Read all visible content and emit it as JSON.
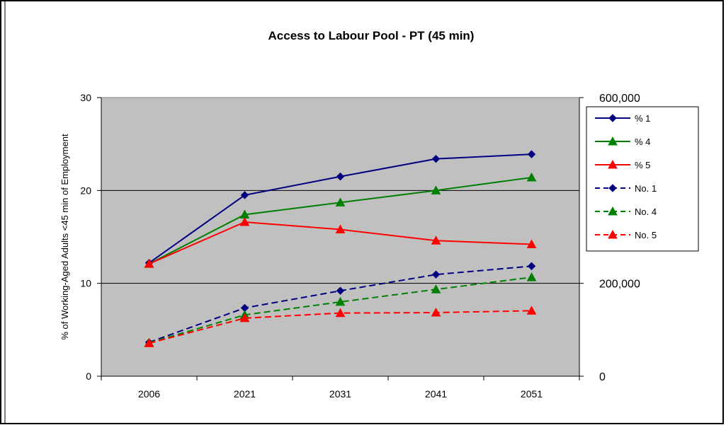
{
  "chart_data": {
    "type": "line",
    "title": "Access to Labour Pool - PT (45 min)",
    "ylabel": "% of Working-Aged  Adults <45 min of Employment",
    "y2label": "",
    "categories": [
      "2006",
      "2021",
      "2031",
      "2041",
      "2051"
    ],
    "ylim": [
      0,
      30
    ],
    "yticks": [
      "0",
      "10",
      "20",
      "30"
    ],
    "y2lim": [
      0,
      600000
    ],
    "y2ticks": [
      "0",
      "200,000",
      "600,000"
    ],
    "y2tick_values": [
      0,
      200000,
      600000
    ],
    "grid": "horizontal major gridlines",
    "plot_background": "#c0c0c0",
    "legend_position": "right",
    "series": [
      {
        "name": "% 1",
        "axis": "left",
        "color": "#000080",
        "marker": "diamond",
        "dash": "solid",
        "values": [
          12.2,
          19.5,
          21.5,
          23.4,
          23.9
        ]
      },
      {
        "name": "% 4",
        "axis": "left",
        "color": "#008000",
        "marker": "triangle",
        "dash": "solid",
        "values": [
          12.1,
          17.4,
          18.7,
          20.0,
          21.4
        ]
      },
      {
        "name": "% 5",
        "axis": "left",
        "color": "#ff0000",
        "marker": "triangle",
        "dash": "solid",
        "values": [
          12.1,
          16.6,
          15.8,
          14.6,
          14.2
        ]
      },
      {
        "name": "No. 1",
        "axis": "right",
        "color": "#000080",
        "marker": "diamond",
        "dash": "dashed",
        "values": [
          73000,
          147000,
          184000,
          219000,
          237000
        ]
      },
      {
        "name": "No. 4",
        "axis": "right",
        "color": "#008000",
        "marker": "triangle",
        "dash": "dashed",
        "values": [
          72000,
          132000,
          160000,
          187000,
          213000
        ]
      },
      {
        "name": "No. 5",
        "axis": "right",
        "color": "#ff0000",
        "marker": "triangle",
        "dash": "dashed",
        "values": [
          71000,
          125000,
          136000,
          137000,
          141000
        ]
      }
    ]
  }
}
